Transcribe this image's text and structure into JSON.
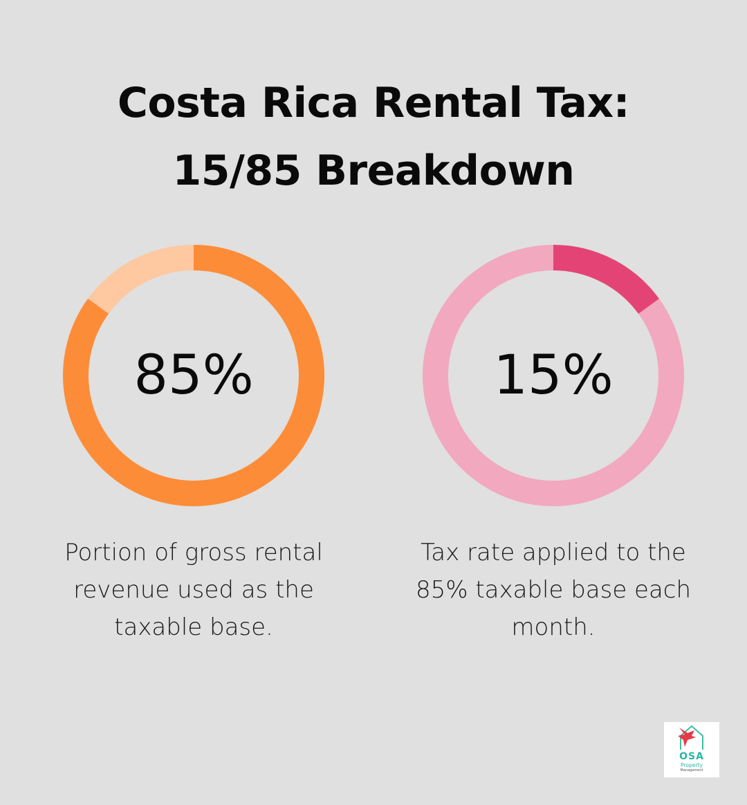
{
  "title": {
    "line1": "Costa Rica Rental Tax:",
    "line2": "15/85 Breakdown"
  },
  "chart_data": [
    {
      "type": "pie",
      "value": 85,
      "label": "85%",
      "caption": "Portion of gross rental revenue used as the taxable base.",
      "colors": {
        "highlight": "#fd8c38",
        "remainder": "#fec8a0"
      }
    },
    {
      "type": "pie",
      "value": 15,
      "label": "15%",
      "caption": "Tax rate applied to the 85% taxable base each month.",
      "colors": {
        "highlight": "#e34475",
        "remainder": "#f2a8bf"
      }
    }
  ],
  "logo": {
    "name": "OSA",
    "line2": "Property",
    "line3": "Management"
  }
}
